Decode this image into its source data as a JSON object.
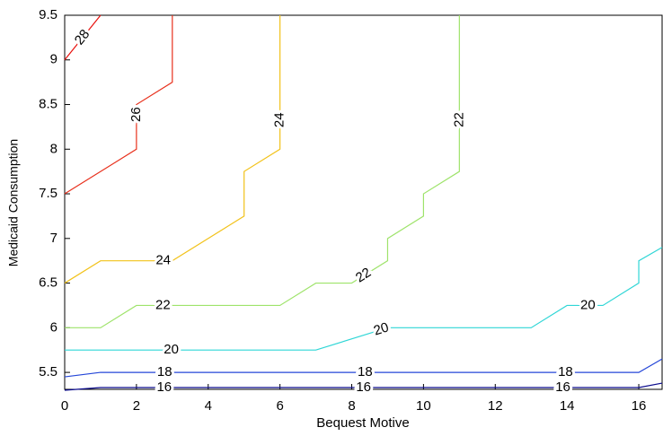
{
  "chart_data": {
    "type": "contour",
    "xlabel": "Bequest Motive",
    "ylabel": "Medicaid Consumption",
    "xlim": [
      0,
      16.65
    ],
    "ylim": [
      5.31,
      9.5
    ],
    "xticks": [
      0,
      2,
      4,
      6,
      8,
      10,
      12,
      14,
      16
    ],
    "yticks": [
      5.5,
      6,
      6.5,
      7,
      7.5,
      8,
      8.5,
      9,
      9.5
    ],
    "series": [
      {
        "name": "28",
        "color": "#e8100c",
        "x": [
          0,
          1
        ],
        "y": [
          9,
          9.5
        ]
      },
      {
        "name": "26",
        "color": "#e8301c",
        "x": [
          0,
          2,
          2,
          3,
          3
        ],
        "y": [
          7.5,
          8,
          8.5,
          8.75,
          9.5
        ]
      },
      {
        "name": "24",
        "color": "#f2c21a",
        "x": [
          0,
          1,
          3,
          5,
          5,
          6,
          6
        ],
        "y": [
          6.5,
          6.75,
          6.75,
          7.25,
          7.75,
          8,
          9.5
        ]
      },
      {
        "name": "22",
        "color": "#9ee36a",
        "x": [
          0,
          1,
          2,
          6,
          7,
          8,
          9,
          9,
          10,
          10,
          11,
          11
        ],
        "y": [
          6,
          6,
          6.25,
          6.25,
          6.5,
          6.5,
          6.75,
          7,
          7.25,
          7.5,
          7.75,
          9.5
        ]
      },
      {
        "name": "20",
        "color": "#2fd6d6",
        "x": [
          0,
          7,
          9,
          13,
          14,
          15,
          16,
          16,
          16.65
        ],
        "y": [
          5.75,
          5.75,
          6,
          6,
          6.25,
          6.25,
          6.5,
          6.75,
          6.9
        ]
      },
      {
        "name": "18",
        "color": "#2446d8",
        "x": [
          0,
          1,
          16,
          16.65
        ],
        "y": [
          5.45,
          5.5,
          5.5,
          5.65
        ]
      },
      {
        "name": "16",
        "color": "#0a0a8c",
        "x": [
          0,
          1,
          16,
          16.65
        ],
        "y": [
          5.3,
          5.33,
          5.33,
          5.38
        ]
      }
    ]
  }
}
